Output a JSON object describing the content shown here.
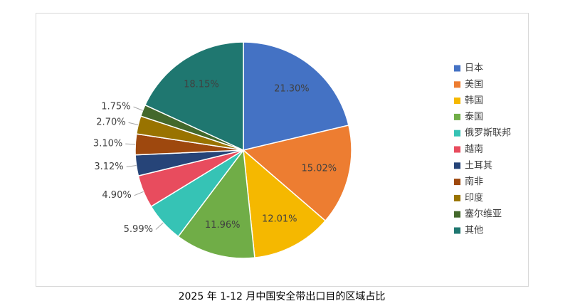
{
  "chart_data": {
    "type": "pie",
    "title": "2025 年 1-12 月中国安全带出口目的区域占比",
    "categories": [
      "日本",
      "美国",
      "韩国",
      "泰国",
      "俄罗斯联邦",
      "越南",
      "土耳其",
      "南非",
      "印度",
      "塞尔维亚",
      "其他"
    ],
    "values": [
      21.3,
      15.02,
      12.01,
      11.96,
      5.99,
      4.9,
      3.12,
      3.1,
      2.7,
      1.75,
      18.15
    ],
    "value_labels": [
      "21.30%",
      "15.02%",
      "12.01%",
      "11.96%",
      "5.99%",
      "4.90%",
      "3.12%",
      "3.10%",
      "2.70%",
      "1.75%",
      "18.15%"
    ],
    "colors": [
      "#4472c4",
      "#ed7d31",
      "#f5b800",
      "#70ad47",
      "#36c3b5",
      "#e84c5e",
      "#264478",
      "#9e480e",
      "#997300",
      "#43682b",
      "#1f7770"
    ],
    "legend": "right"
  }
}
